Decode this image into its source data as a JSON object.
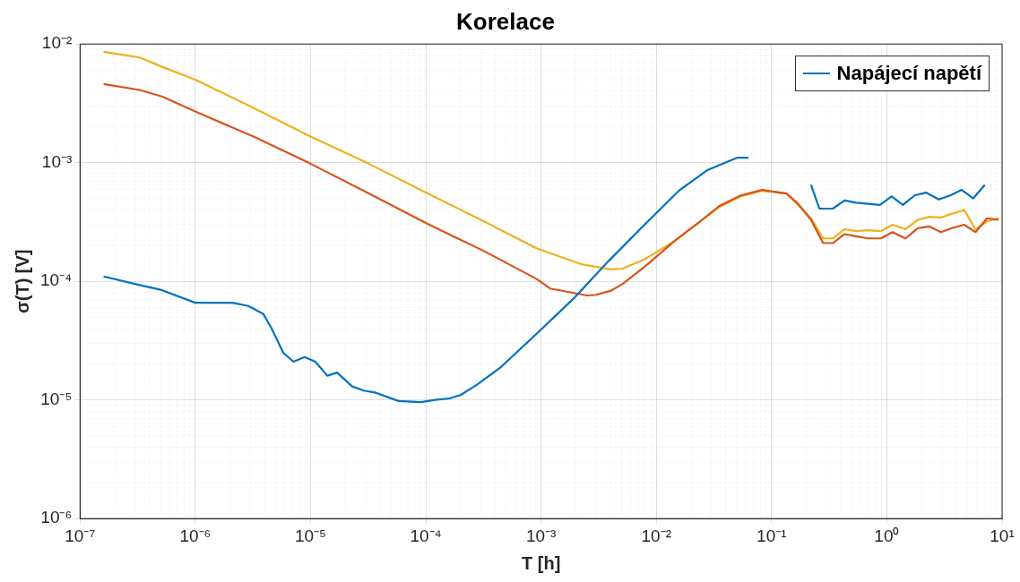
{
  "chart_data": {
    "type": "line",
    "title": "Korelace",
    "xlabel": "T [h]",
    "ylabel": "σ(T) [V]",
    "log": "xy",
    "grid": true,
    "legend": "top right",
    "xlim": [
      1e-07,
      10
    ],
    "ylim": [
      1e-06,
      0.01
    ],
    "xticks": [
      {
        "value": 1e-07,
        "label": "10⁻⁷"
      },
      {
        "value": 1e-06,
        "label": "10⁻⁶"
      },
      {
        "value": 1e-05,
        "label": "10⁻⁵"
      },
      {
        "value": 0.0001,
        "label": "10⁻⁴"
      },
      {
        "value": 0.001,
        "label": "10⁻³"
      },
      {
        "value": 0.01,
        "label": "10⁻²"
      },
      {
        "value": 0.1,
        "label": "10⁻¹"
      },
      {
        "value": 1,
        "label": "10⁰"
      },
      {
        "value": 10,
        "label": "10¹"
      }
    ],
    "yticks": [
      {
        "value": 1e-06,
        "label": "10⁻⁶"
      },
      {
        "value": 1e-05,
        "label": "10⁻⁵"
      },
      {
        "value": 0.0001,
        "label": "10⁻⁴"
      },
      {
        "value": 0.001,
        "label": "10⁻³"
      },
      {
        "value": 0.01,
        "label": "10⁻²"
      }
    ],
    "series": [
      {
        "name": "Napájecí napětí",
        "color": "#0072bd",
        "x": [
          1.6e-07,
          3.3e-07,
          5e-07,
          1e-06,
          1.6e-06,
          2.1e-06,
          2.9e-06,
          3.9e-06,
          4.6e-06,
          5.8e-06,
          7.1e-06,
          8.9e-06,
          1.1e-05,
          1.4e-05,
          1.7e-05,
          2.3e-05,
          2.9e-05,
          3.7e-05,
          5.8e-05,
          9.1e-05,
          0.00012,
          0.00016,
          0.0002,
          0.00028,
          0.00045,
          0.00091,
          0.0019,
          0.0039,
          0.0079,
          0.016,
          0.028,
          0.05,
          0.063,
          0.1,
          0.22,
          0.26,
          0.34,
          0.43,
          0.54,
          0.69,
          0.87,
          1.1,
          1.38,
          1.74,
          2.19,
          2.82,
          3.55,
          4.47,
          5.62,
          7.08
        ],
        "values": [
          0.00011,
          9.3e-05,
          8.5e-05,
          6.6e-05,
          6.6e-05,
          6.6e-05,
          6.2e-05,
          5.3e-05,
          4e-05,
          2.5e-05,
          2.1e-05,
          2.3e-05,
          2.1e-05,
          1.6e-05,
          1.7e-05,
          1.3e-05,
          1.2e-05,
          1.15e-05,
          9.8e-06,
          9.6e-06,
          1e-05,
          1.03e-05,
          1.1e-05,
          1.35e-05,
          1.9e-05,
          3.6e-05,
          7.1e-05,
          0.00015,
          0.0003,
          0.00059,
          0.00087,
          0.0011,
          0.0011,
          null,
          0.00065,
          0.00041,
          0.00041,
          0.00048,
          0.00046,
          0.00045,
          0.00044,
          0.00052,
          0.00044,
          0.00053,
          0.00056,
          0.00049,
          0.00053,
          0.00059,
          0.0005,
          0.00065
        ]
      },
      {
        "color": "#d95319",
        "x": [
          1.6e-07,
          3.3e-07,
          5.2e-07,
          1e-06,
          3.2e-06,
          1e-05,
          3.2e-05,
          0.0001,
          0.00032,
          0.00091,
          0.0012,
          0.0025,
          0.003,
          0.004,
          0.0051,
          0.0081,
          0.0145,
          0.024,
          0.035,
          0.054,
          0.083,
          0.135,
          0.17,
          0.22,
          0.28,
          0.34,
          0.43,
          0.54,
          0.69,
          0.89,
          1.12,
          1.45,
          1.86,
          2.34,
          2.95,
          3.63,
          4.68,
          5.89,
          7.41,
          9.33
        ],
        "values": [
          0.0046,
          0.0041,
          0.0036,
          0.0027,
          0.00166,
          0.00098,
          0.00055,
          0.00031,
          0.00018,
          0.000105,
          8.7e-05,
          7.6e-05,
          7.7e-05,
          8.3e-05,
          9.5e-05,
          0.000135,
          0.00022,
          0.00032,
          0.00043,
          0.00053,
          0.00059,
          0.00055,
          0.00045,
          0.00033,
          0.00021,
          0.00021,
          0.00025,
          0.00024,
          0.00023,
          0.00023,
          0.00026,
          0.00023,
          0.00028,
          0.00029,
          0.00026,
          0.00028,
          0.0003,
          0.00026,
          0.00034,
          0.00033
        ]
      },
      {
        "color": "#edb120",
        "x": [
          1.6e-07,
          3.3e-07,
          5.2e-07,
          1e-06,
          3.2e-06,
          1e-05,
          3.2e-05,
          0.0001,
          0.00032,
          0.00091,
          0.0022,
          0.004,
          0.0051,
          0.0081,
          0.0145,
          0.024,
          0.035,
          0.054,
          0.083,
          0.135,
          0.22,
          0.28,
          0.34,
          0.43,
          0.54,
          0.69,
          0.89,
          1.12,
          1.45,
          1.86,
          2.34,
          2.95,
          3.63,
          4.68,
          5.89,
          7.41,
          9.33
        ],
        "values": [
          0.0086,
          0.0077,
          0.0064,
          0.005,
          0.0029,
          0.00166,
          0.00098,
          0.00056,
          0.00032,
          0.00019,
          0.00014,
          0.000126,
          0.000128,
          0.000155,
          0.00022,
          0.00032,
          0.00042,
          0.00052,
          0.00058,
          0.00055,
          0.00034,
          0.00023,
          0.00023,
          0.000275,
          0.000265,
          0.00027,
          0.000265,
          0.0003,
          0.000275,
          0.00033,
          0.00035,
          0.000345,
          0.00037,
          0.0004,
          0.000275,
          0.00032,
          0.00034
        ]
      }
    ]
  }
}
